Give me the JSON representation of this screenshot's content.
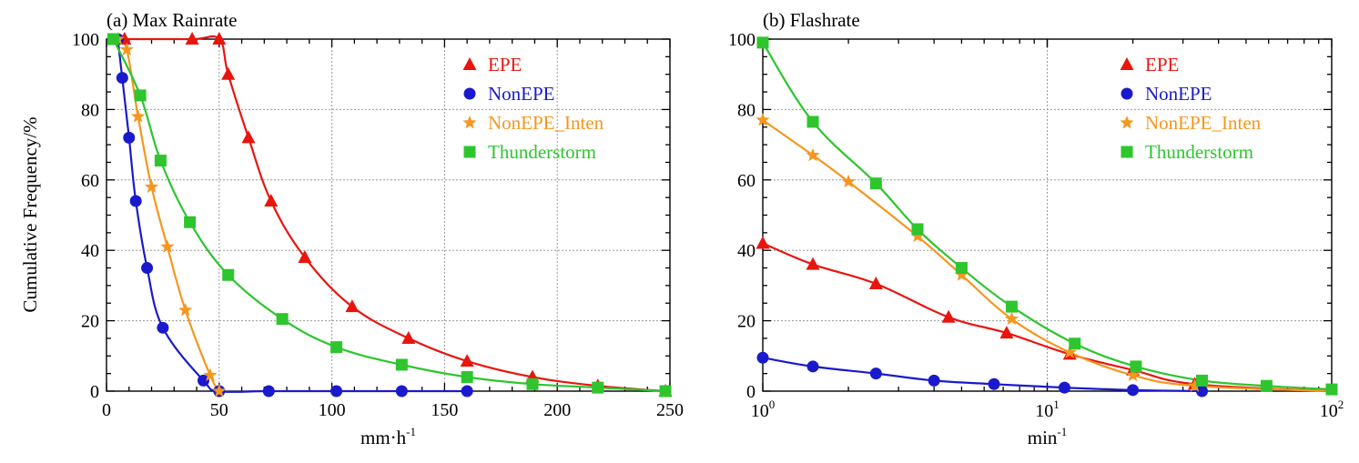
{
  "figure": {
    "ylabel": "Cumulative Frequency/%"
  },
  "chart_data": [
    {
      "type": "line",
      "title": "(a) Max Rainrate",
      "xlabel": "mm·h",
      "xlabel_sup": "-1",
      "ylabel": "Cumulative Frequency/%",
      "xlim": [
        0,
        250
      ],
      "ylim": [
        0,
        100
      ],
      "xscale": "linear",
      "xticks": [
        0,
        50,
        100,
        150,
        200,
        250
      ],
      "xtick_labels": [
        "0",
        "50",
        "100",
        "150",
        "200",
        "250"
      ],
      "yticks": [
        0,
        20,
        40,
        60,
        80,
        100
      ],
      "ytick_labels": [
        "0",
        "20",
        "40",
        "60",
        "80",
        "100"
      ],
      "grid": true,
      "legend_position": "top-right",
      "series": [
        {
          "name": "EPE",
          "color": "#e8150f",
          "marker": "triangle",
          "x": [
            8,
            38,
            50,
            54,
            63,
            73,
            88,
            109,
            134,
            160,
            189,
            218,
            248
          ],
          "y": [
            100,
            100,
            100,
            90,
            72,
            54,
            38,
            24,
            15,
            8.5,
            4,
            1.5,
            0
          ]
        },
        {
          "name": "NonEPE",
          "color": "#1a1acc",
          "marker": "circle",
          "x": [
            5,
            7,
            10,
            13,
            18,
            25,
            43,
            50,
            72,
            102,
            131,
            160
          ],
          "y": [
            100,
            89,
            72,
            54,
            35,
            18,
            3,
            0,
            0,
            0,
            0,
            0
          ]
        },
        {
          "name": "NonEPE_Inten",
          "color": "#f5961e",
          "marker": "star",
          "x": [
            5,
            9,
            14,
            20,
            27,
            35,
            46,
            50
          ],
          "y": [
            100,
            97,
            78,
            58,
            41,
            23,
            4.5,
            0
          ]
        },
        {
          "name": "Thunderstorm",
          "color": "#2ec52e",
          "marker": "square",
          "x": [
            3,
            15,
            24,
            37,
            54,
            78,
            102,
            131,
            160,
            189,
            218,
            248
          ],
          "y": [
            100,
            84,
            65.5,
            48,
            33,
            20.5,
            12.5,
            7.5,
            4,
            2,
            1,
            0
          ]
        }
      ]
    },
    {
      "type": "line",
      "title": "(b) Flashrate",
      "xlabel": "min",
      "xlabel_sup": "-1",
      "xlim": [
        1,
        100
      ],
      "ylim": [
        0,
        100
      ],
      "xscale": "log",
      "xticks": [
        1,
        10,
        100
      ],
      "xtick_bases": [
        "10",
        "10",
        "10"
      ],
      "xtick_exps": [
        "0",
        "1",
        "2"
      ],
      "yticks": [
        0,
        20,
        40,
        60,
        80,
        100
      ],
      "ytick_labels": [
        "0",
        "20",
        "40",
        "60",
        "80",
        "100"
      ],
      "grid": true,
      "legend_position": "top-right",
      "series": [
        {
          "name": "EPE",
          "color": "#e8150f",
          "marker": "triangle",
          "x": [
            1,
            1.5,
            2.5,
            4.5,
            7.2,
            12,
            20,
            33,
            100
          ],
          "y": [
            42,
            36,
            30.5,
            21,
            16.5,
            10.5,
            6,
            2,
            0
          ]
        },
        {
          "name": "NonEPE",
          "color": "#1a1acc",
          "marker": "circle",
          "x": [
            1,
            1.5,
            2.5,
            4,
            6.5,
            11.5,
            20,
            35
          ],
          "y": [
            9.5,
            7,
            5,
            3,
            2,
            1,
            0.3,
            0
          ]
        },
        {
          "name": "NonEPE_Inten",
          "color": "#f5961e",
          "marker": "star",
          "x": [
            1,
            1.5,
            2,
            3.5,
            5,
            7.5,
            12,
            20,
            33,
            100
          ],
          "y": [
            77,
            67,
            59.5,
            44,
            33,
            20.5,
            11,
            4.5,
            1.5,
            0
          ]
        },
        {
          "name": "Thunderstorm",
          "color": "#2ec52e",
          "marker": "square",
          "x": [
            1,
            1.5,
            2.5,
            3.5,
            5,
            7.5,
            12.5,
            20.5,
            35,
            59,
            100
          ],
          "y": [
            99,
            76.5,
            59,
            46,
            35,
            24,
            13.5,
            7,
            3,
            1.5,
            0.5
          ]
        }
      ]
    }
  ]
}
